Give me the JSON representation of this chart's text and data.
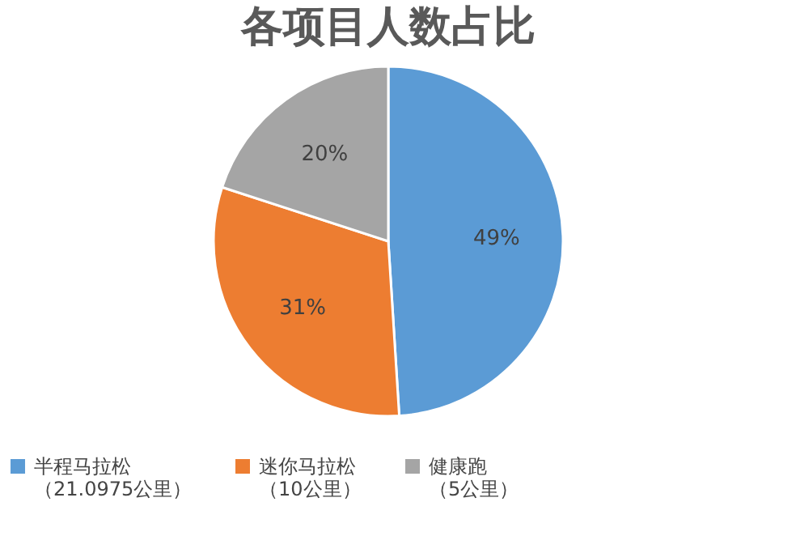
{
  "chart_data": {
    "type": "pie",
    "title": "各项目人数占比",
    "categories": [
      "半程马拉松（21.0975公里）",
      "迷你马拉松（10公里）",
      "健康跑（5公里）"
    ],
    "values": [
      49,
      31,
      20
    ],
    "colors": [
      "#5b9bd5",
      "#ed7d31",
      "#a5a5a5"
    ],
    "value_labels": [
      "49%",
      "31%",
      "20%"
    ],
    "legend": "bottom"
  }
}
